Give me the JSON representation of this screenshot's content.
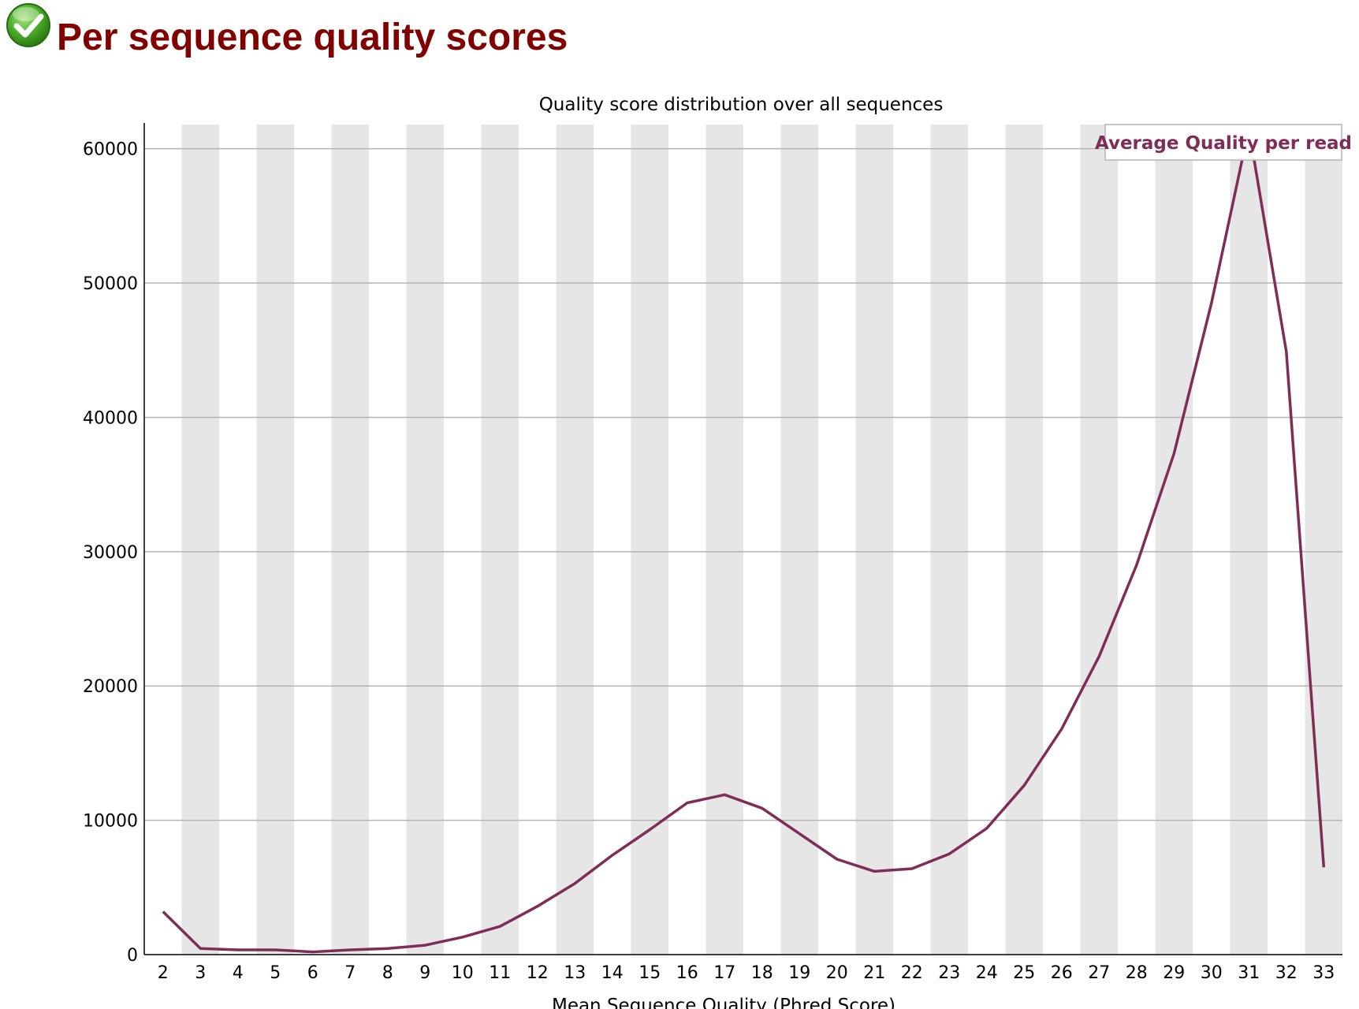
{
  "page": {
    "title": "Per sequence quality scores",
    "status_icon": "pass-check-icon",
    "status": "pass"
  },
  "colors": {
    "title": "#800000",
    "series": "#7f2d57",
    "stripe": "#e6e6e6",
    "grid": "#b4b4b4",
    "axis": "#000000"
  },
  "chart_data": {
    "type": "line",
    "title": "Quality score distribution over all sequences",
    "xlabel": "Mean Sequence Quality (Phred Score)",
    "ylabel": "",
    "categories": [
      "2",
      "3",
      "4",
      "5",
      "6",
      "7",
      "8",
      "9",
      "10",
      "11",
      "12",
      "13",
      "14",
      "15",
      "16",
      "17",
      "18",
      "19",
      "20",
      "21",
      "22",
      "23",
      "24",
      "25",
      "26",
      "27",
      "28",
      "29",
      "30",
      "31",
      "32",
      "33"
    ],
    "series": [
      {
        "name": "Average Quality per read",
        "values": [
          3200,
          450,
          350,
          350,
          200,
          350,
          450,
          700,
          1300,
          2100,
          3600,
          5300,
          7400,
          9300,
          11300,
          11900,
          10900,
          9000,
          7100,
          6200,
          6400,
          7500,
          9400,
          12600,
          16800,
          22200,
          29000,
          37300,
          48500,
          61500,
          44900,
          6500
        ]
      }
    ],
    "yticks": [
      0,
      10000,
      20000,
      30000,
      40000,
      50000,
      60000
    ],
    "ylim": [
      0,
      61800
    ],
    "grid": true,
    "legend": {
      "position": "top-right",
      "label": "Average Quality per read"
    }
  }
}
